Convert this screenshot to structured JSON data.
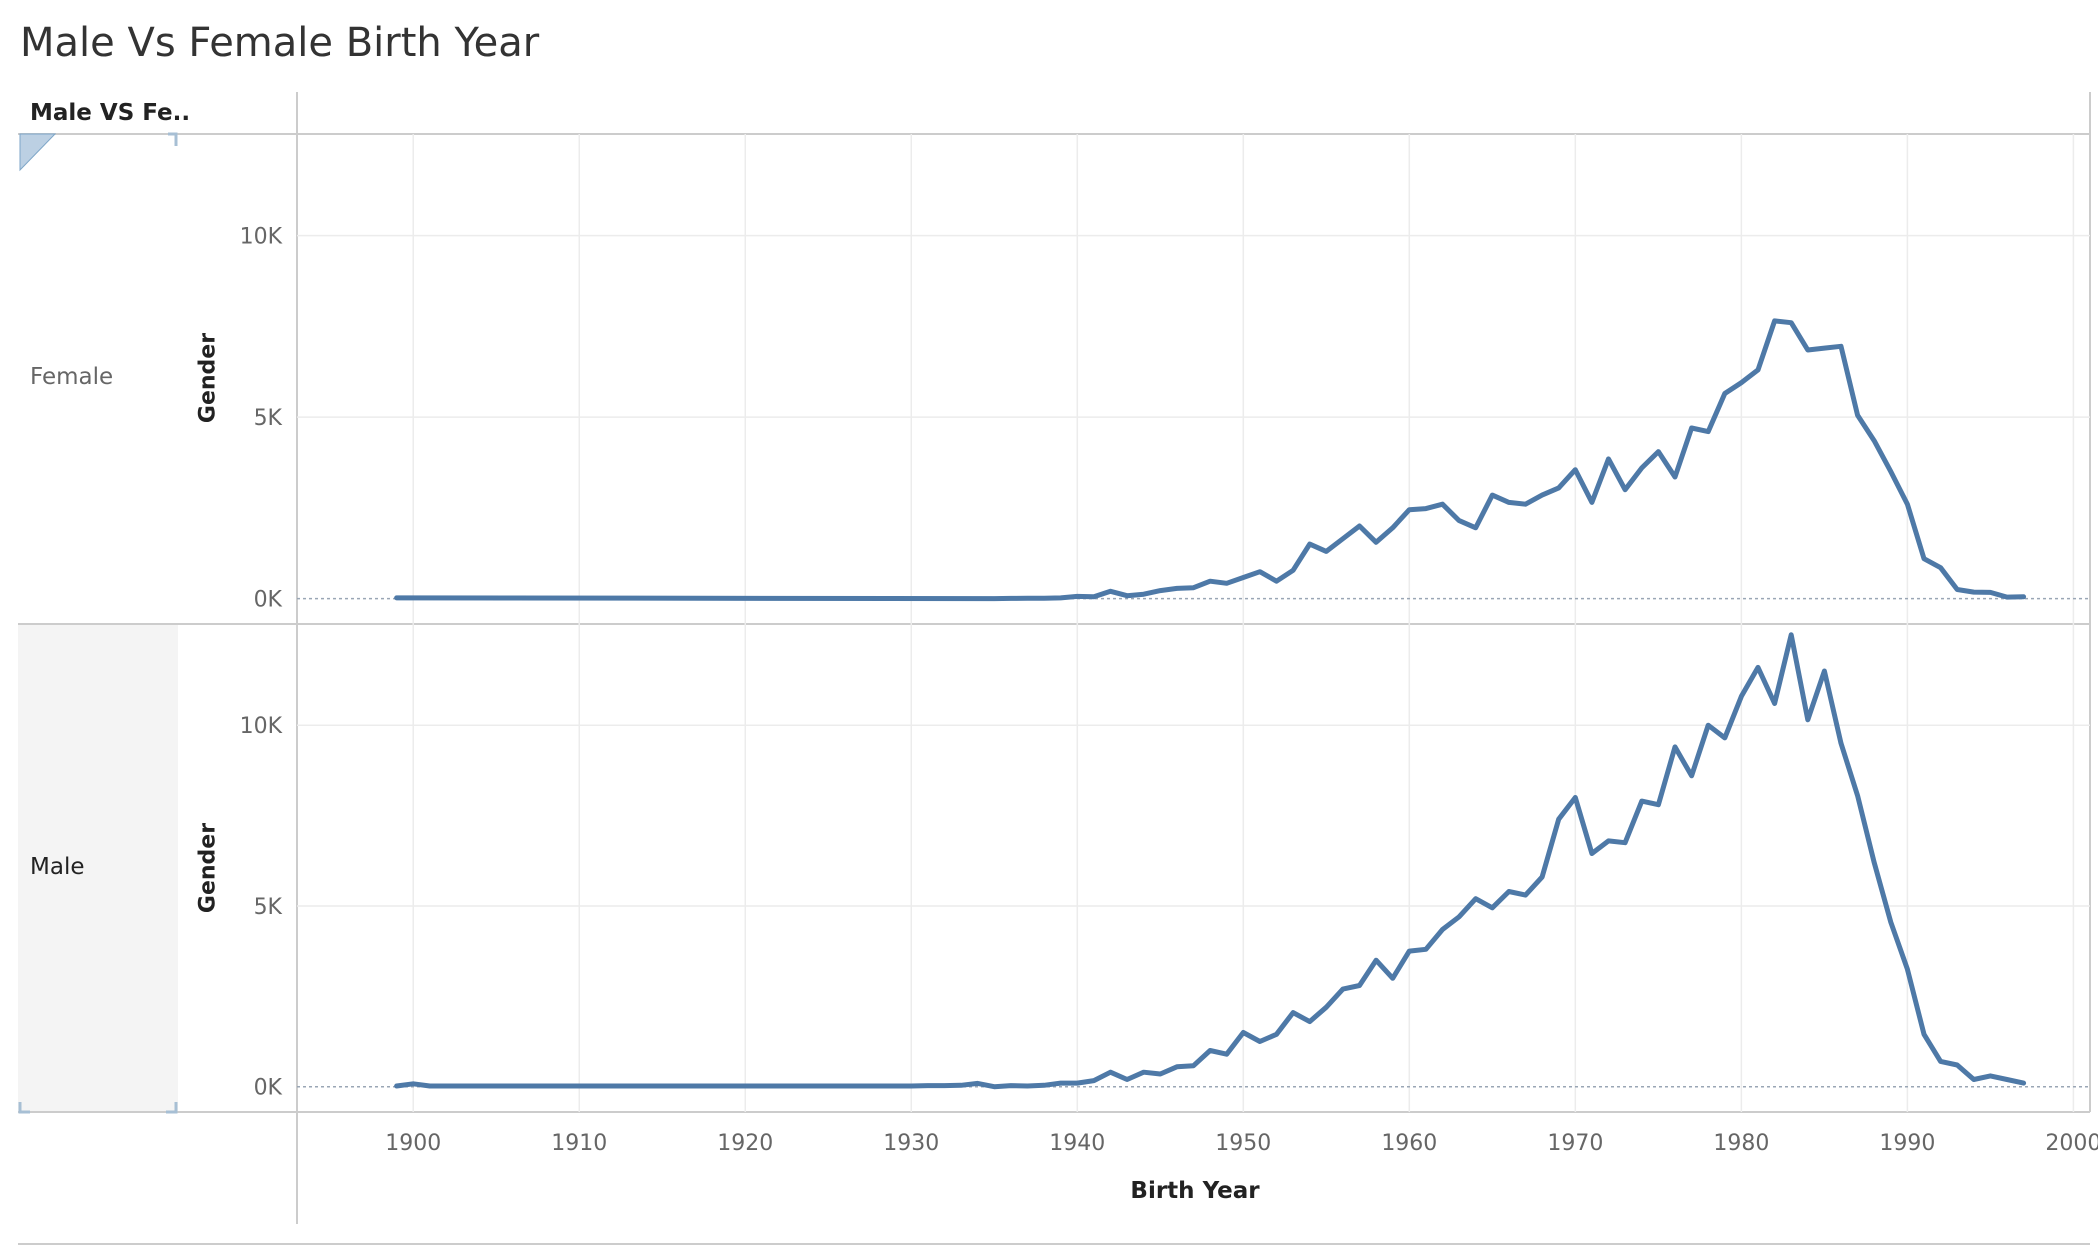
{
  "page": {
    "title": "Male Vs Female Birth Year"
  },
  "header": {
    "label": "Male VS Fe.."
  },
  "colors": {
    "line": "#4e79a7",
    "grid": "#ececec",
    "border": "#cccccc",
    "zero_line": "#9aa6b5"
  },
  "chart_data": {
    "type": "line",
    "title": "Male Vs Female Birth Year",
    "xlabel": "Birth Year",
    "ylabel": "Gender",
    "xlim": [
      1893,
      2001
    ],
    "ylim": [
      -700,
      12800
    ],
    "x_ticks": [
      1900,
      1910,
      1920,
      1930,
      1940,
      1950,
      1960,
      1970,
      1980,
      1990,
      2000
    ],
    "y_ticks": [
      0,
      5000,
      10000
    ],
    "y_tick_labels": [
      "0K",
      "5K",
      "10K"
    ],
    "grid": true,
    "panels": [
      {
        "name": "Female",
        "x": [
          1899,
          1935,
          1936,
          1937,
          1938,
          1939,
          1940,
          1941,
          1942,
          1943,
          1944,
          1945,
          1946,
          1947,
          1948,
          1949,
          1950,
          1951,
          1952,
          1953,
          1954,
          1955,
          1956,
          1957,
          1958,
          1959,
          1960,
          1961,
          1962,
          1963,
          1964,
          1965,
          1966,
          1967,
          1968,
          1969,
          1970,
          1971,
          1972,
          1973,
          1974,
          1975,
          1976,
          1977,
          1978,
          1979,
          1980,
          1981,
          1982,
          1983,
          1984,
          1985,
          1986,
          1987,
          1988,
          1989,
          1990,
          1991,
          1992,
          1993,
          1994,
          1995,
          1996,
          1997
        ],
        "y": [
          20,
          0,
          5,
          10,
          10,
          20,
          60,
          50,
          200,
          80,
          120,
          220,
          280,
          300,
          480,
          420,
          580,
          740,
          480,
          780,
          1500,
          1300,
          1650,
          2000,
          1550,
          1950,
          2450,
          2480,
          2600,
          2150,
          1950,
          2850,
          2650,
          2600,
          2850,
          3050,
          3550,
          2650,
          3850,
          3000,
          3600,
          4050,
          3350,
          4700,
          4600,
          5650,
          5950,
          6300,
          7650,
          7600,
          6850,
          6900,
          6950,
          5050,
          4350,
          3500,
          2600,
          1100,
          850,
          250,
          180,
          170,
          40,
          50
        ]
      },
      {
        "name": "Male",
        "x": [
          1899,
          1900,
          1901,
          1930,
          1931,
          1932,
          1933,
          1934,
          1935,
          1936,
          1937,
          1938,
          1939,
          1940,
          1941,
          1942,
          1943,
          1944,
          1945,
          1946,
          1947,
          1948,
          1949,
          1950,
          1951,
          1952,
          1953,
          1954,
          1955,
          1956,
          1957,
          1958,
          1959,
          1960,
          1961,
          1962,
          1963,
          1964,
          1965,
          1966,
          1967,
          1968,
          1969,
          1970,
          1971,
          1972,
          1973,
          1974,
          1975,
          1976,
          1977,
          1978,
          1979,
          1980,
          1981,
          1982,
          1983,
          1984,
          1985,
          1986,
          1987,
          1988,
          1989,
          1990,
          1991,
          1992,
          1993,
          1994,
          1995,
          1996,
          1997
        ],
        "y": [
          20,
          80,
          20,
          20,
          30,
          30,
          40,
          90,
          0,
          30,
          20,
          40,
          100,
          100,
          170,
          400,
          200,
          400,
          350,
          550,
          580,
          1000,
          900,
          1500,
          1250,
          1450,
          2050,
          1800,
          2200,
          2700,
          2800,
          3500,
          3000,
          3750,
          3800,
          4350,
          4700,
          5200,
          4950,
          5400,
          5300,
          5800,
          7400,
          8000,
          6450,
          6800,
          6750,
          7900,
          7800,
          9400,
          8600,
          10000,
          9650,
          10800,
          11600,
          10600,
          12500,
          10150,
          11500,
          9500,
          8050,
          6200,
          4550,
          3250,
          1450,
          700,
          600,
          200,
          300,
          200,
          100
        ]
      }
    ]
  }
}
